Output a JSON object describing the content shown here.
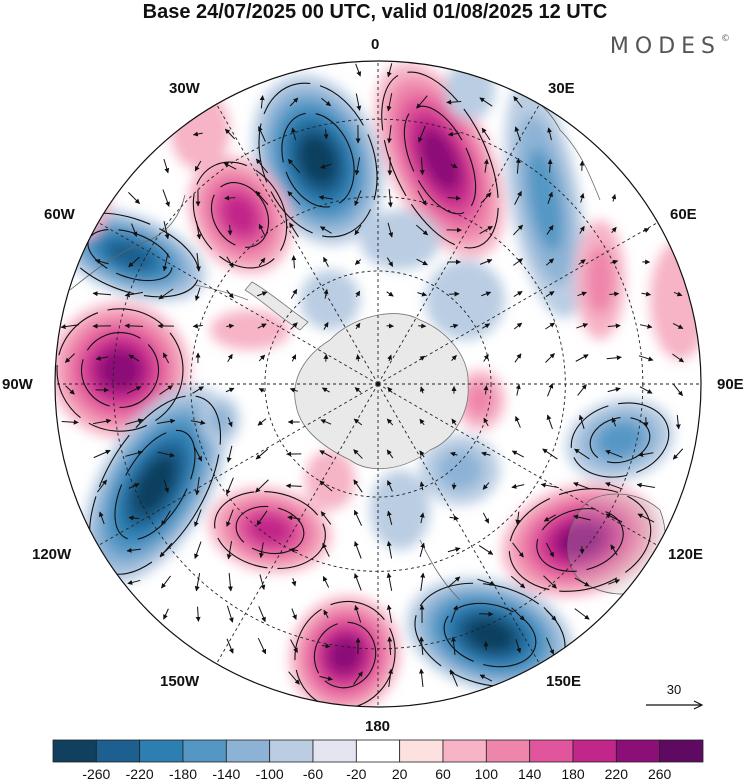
{
  "title": "Base 24/07/2025 00 UTC, valid 01/08/2025 12 UTC",
  "brand": "MODES",
  "brand_mark": "©",
  "longitude_labels": {
    "north": "0",
    "ne": "30E",
    "nw": "30W",
    "ene": "60E",
    "wnw": "60W",
    "east": "90E",
    "west": "90W",
    "ese": "120E",
    "wsw": "120W",
    "se": "150E",
    "sw": "150W",
    "south": "180"
  },
  "reference_vector": {
    "value": "30"
  },
  "colorbar": {
    "ticks": [
      "-260",
      "-220",
      "-180",
      "-140",
      "-100",
      "-60",
      "-20",
      "20",
      "60",
      "100",
      "140",
      "180",
      "220",
      "260"
    ],
    "colors": [
      "#10405e",
      "#1d5f8e",
      "#2d7fb2",
      "#5497c5",
      "#8cb3d6",
      "#bacde3",
      "#e4e5f0",
      "#ffffff",
      "#fde0e0",
      "#f6b4c6",
      "#ee85aa",
      "#e0559b",
      "#c2268a",
      "#8c0f78",
      "#5e0a63"
    ]
  },
  "map_layers": {
    "projection": "south-polar-stereographic",
    "field": "streamfunction anomaly",
    "vectors": "wind"
  }
}
